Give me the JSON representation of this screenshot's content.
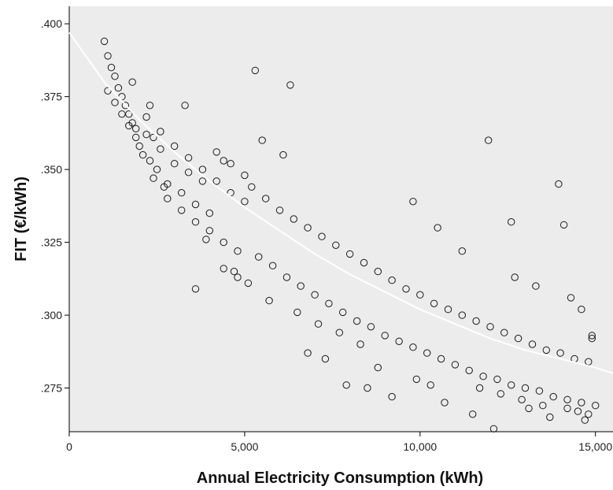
{
  "chart_data": {
    "type": "scatter",
    "title": "",
    "xlabel": "Annual Electricity Consumption (kWh)",
    "ylabel": "FIT (€/kWh)",
    "xlim": [
      0,
      15500
    ],
    "ylim": [
      0.26,
      0.406
    ],
    "x_ticks": [
      {
        "value": 0,
        "label": "0"
      },
      {
        "value": 5000,
        "label": "5,000"
      },
      {
        "value": 10000,
        "label": "10,000"
      },
      {
        "value": 15000,
        "label": "15,000"
      }
    ],
    "y_ticks": [
      {
        "value": 0.275,
        "label": ".275"
      },
      {
        "value": 0.3,
        "label": ".300"
      },
      {
        "value": 0.325,
        "label": ".325"
      },
      {
        "value": 0.35,
        "label": ".350"
      },
      {
        "value": 0.375,
        "label": ".375"
      },
      {
        "value": 0.4,
        "label": ".400"
      }
    ],
    "grid": false,
    "plot_background": "#ececec",
    "marker_color": "#1a1a1a",
    "fit_line_color": "#ffffff",
    "fit_line": {
      "x": [
        0,
        1000,
        2000,
        3000,
        4000,
        5000,
        6000,
        7000,
        8000,
        9000,
        10000,
        11000,
        12000,
        13000,
        14000,
        15000,
        15500
      ],
      "y": [
        0.397,
        0.38,
        0.367,
        0.356,
        0.346,
        0.337,
        0.329,
        0.321,
        0.314,
        0.308,
        0.302,
        0.297,
        0.292,
        0.288,
        0.285,
        0.282,
        0.28
      ]
    },
    "series": [
      {
        "marker": "circle",
        "x": [
          1000,
          1100,
          1200,
          1300,
          1400,
          1500,
          1600,
          1700,
          1800,
          1900,
          1100,
          1300,
          1500,
          1700,
          1900,
          2000,
          2100,
          2200,
          2300,
          2400,
          2500,
          2200,
          2400,
          2600,
          2800,
          3000,
          3200,
          3400,
          3600,
          3800,
          4000,
          2600,
          2800,
          3000,
          3200,
          3400,
          3600,
          3800,
          4000,
          4200,
          4400,
          4600,
          4800,
          5000,
          4200,
          4400,
          4600,
          4800,
          5000,
          5200,
          5400,
          5600,
          5800,
          6000,
          6200,
          6400,
          6600,
          6800,
          7000,
          7200,
          7400,
          7600,
          7800,
          8000,
          8200,
          8400,
          8600,
          8800,
          9000,
          9200,
          9400,
          9600,
          9800,
          10000,
          10200,
          10400,
          10600,
          10800,
          11000,
          11200,
          11400,
          11600,
          11800,
          12000,
          12200,
          12400,
          12600,
          12800,
          13000,
          13200,
          13400,
          13600,
          13800,
          14000,
          14200,
          14400,
          14600,
          14800,
          15000,
          5300,
          6300,
          11950,
          13950,
          12600,
          14100,
          3600,
          7900,
          12100,
          14900,
          14700,
          5500,
          6100,
          3300,
          4400,
          9800,
          10500,
          11200,
          12700,
          13300,
          14300,
          14600,
          14900,
          2300,
          1800,
          4700,
          8500,
          9200,
          10700,
          11500,
          13100,
          13700,
          14500,
          6800,
          7300,
          8800,
          9900,
          10300,
          11700,
          12300,
          12900,
          13500,
          14200,
          14800,
          2700,
          3900,
          5100,
          5700,
          6500,
          7100,
          7700,
          8300
        ],
        "y": [
          0.394,
          0.389,
          0.385,
          0.382,
          0.378,
          0.375,
          0.372,
          0.369,
          0.366,
          0.364,
          0.377,
          0.373,
          0.369,
          0.365,
          0.361,
          0.358,
          0.355,
          0.368,
          0.353,
          0.361,
          0.35,
          0.362,
          0.347,
          0.357,
          0.345,
          0.352,
          0.342,
          0.349,
          0.338,
          0.346,
          0.335,
          0.363,
          0.34,
          0.358,
          0.336,
          0.354,
          0.332,
          0.35,
          0.329,
          0.346,
          0.325,
          0.342,
          0.322,
          0.339,
          0.356,
          0.316,
          0.352,
          0.313,
          0.348,
          0.344,
          0.32,
          0.34,
          0.317,
          0.336,
          0.313,
          0.333,
          0.31,
          0.33,
          0.307,
          0.327,
          0.304,
          0.324,
          0.301,
          0.321,
          0.298,
          0.318,
          0.296,
          0.315,
          0.293,
          0.312,
          0.291,
          0.309,
          0.289,
          0.307,
          0.287,
          0.304,
          0.285,
          0.302,
          0.283,
          0.3,
          0.281,
          0.298,
          0.279,
          0.296,
          0.278,
          0.294,
          0.276,
          0.292,
          0.275,
          0.29,
          0.274,
          0.288,
          0.272,
          0.287,
          0.271,
          0.285,
          0.27,
          0.284,
          0.269,
          0.384,
          0.379,
          0.36,
          0.345,
          0.332,
          0.331,
          0.309,
          0.276,
          0.261,
          0.292,
          0.264,
          0.36,
          0.355,
          0.372,
          0.353,
          0.339,
          0.33,
          0.322,
          0.313,
          0.31,
          0.306,
          0.302,
          0.293,
          0.372,
          0.38,
          0.315,
          0.275,
          0.272,
          0.27,
          0.266,
          0.268,
          0.265,
          0.267,
          0.287,
          0.285,
          0.282,
          0.278,
          0.276,
          0.275,
          0.273,
          0.271,
          0.269,
          0.268,
          0.266,
          0.344,
          0.326,
          0.311,
          0.305,
          0.301,
          0.297,
          0.294,
          0.29
        ]
      }
    ]
  }
}
